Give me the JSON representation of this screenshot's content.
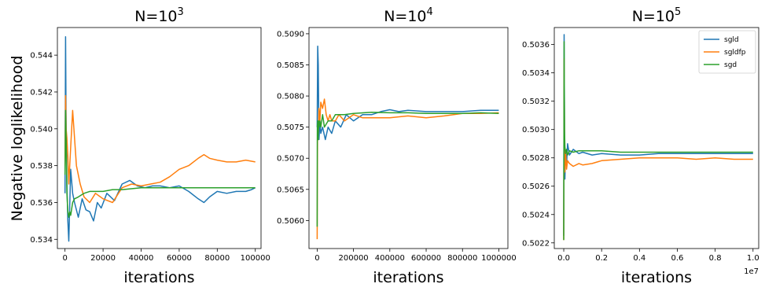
{
  "figure": {
    "ylabel": "Negative loglikelihood",
    "colors": {
      "sgld": "#1f77b4",
      "sgldfp": "#ff7f0e",
      "sgd": "#2ca02c"
    }
  },
  "chart_data": [
    {
      "type": "line",
      "title": "N=10",
      "title_exp": "3",
      "xlabel": "iterations",
      "ylabel": "Negative loglikelihood",
      "xlim": [
        -4000,
        103000
      ],
      "ylim": [
        0.5335,
        0.5455
      ],
      "xticks": [
        0,
        20000,
        40000,
        60000,
        80000,
        100000
      ],
      "xtick_labels": [
        "0",
        "20000",
        "40000",
        "60000",
        "80000",
        "100000"
      ],
      "yticks": [
        0.534,
        0.536,
        0.538,
        0.54,
        0.542,
        0.544
      ],
      "ytick_labels": [
        "0.534",
        "0.536",
        "0.538",
        "0.540",
        "0.542",
        "0.544"
      ],
      "series": [
        {
          "name": "sgld",
          "x": [
            0,
            300,
            600,
            1000,
            1500,
            2000,
            3000,
            4000,
            5000,
            7000,
            9000,
            11000,
            13000,
            15000,
            17000,
            19000,
            22000,
            26000,
            30000,
            34000,
            38000,
            42000,
            46000,
            50000,
            55000,
            60000,
            65000,
            70000,
            73000,
            76000,
            80000,
            85000,
            90000,
            95000,
            98000,
            100000
          ],
          "y": [
            0.5365,
            0.545,
            0.54,
            0.537,
            0.535,
            0.5339,
            0.5378,
            0.5365,
            0.536,
            0.5352,
            0.5362,
            0.5356,
            0.5355,
            0.535,
            0.536,
            0.5357,
            0.5365,
            0.5361,
            0.537,
            0.5372,
            0.5369,
            0.5368,
            0.5369,
            0.5369,
            0.5368,
            0.5369,
            0.5366,
            0.5362,
            0.536,
            0.5363,
            0.5366,
            0.5365,
            0.5366,
            0.5366,
            0.5367,
            0.5368
          ]
        },
        {
          "name": "sgldfp",
          "x": [
            0,
            300,
            600,
            1000,
            1500,
            2000,
            3000,
            4000,
            5000,
            6000,
            7000,
            8000,
            10000,
            13000,
            16000,
            20000,
            25000,
            30000,
            35000,
            40000,
            45000,
            50000,
            55000,
            60000,
            65000,
            70000,
            73000,
            76000,
            80000,
            85000,
            90000,
            95000,
            100000
          ],
          "y": [
            0.538,
            0.5418,
            0.54,
            0.5395,
            0.5385,
            0.537,
            0.539,
            0.541,
            0.5395,
            0.538,
            0.5375,
            0.537,
            0.5363,
            0.536,
            0.5365,
            0.5362,
            0.536,
            0.5368,
            0.537,
            0.5369,
            0.537,
            0.5371,
            0.5374,
            0.5378,
            0.538,
            0.5384,
            0.5386,
            0.5384,
            0.5383,
            0.5382,
            0.5382,
            0.5383,
            0.5382
          ]
        },
        {
          "name": "sgd",
          "x": [
            0,
            300,
            600,
            1000,
            1500,
            2000,
            2500,
            3000,
            4000,
            5000,
            7000,
            10000,
            13000,
            16000,
            20000,
            25000,
            30000,
            40000,
            50000,
            60000,
            70000,
            80000,
            90000,
            100000
          ],
          "y": [
            0.5375,
            0.541,
            0.5395,
            0.5365,
            0.5355,
            0.5352,
            0.5355,
            0.5353,
            0.536,
            0.5362,
            0.5363,
            0.5365,
            0.5366,
            0.5366,
            0.5366,
            0.5367,
            0.5367,
            0.5368,
            0.5368,
            0.5368,
            0.5368,
            0.5368,
            0.5368,
            0.5368
          ]
        }
      ]
    },
    {
      "type": "line",
      "title": "N=10",
      "title_exp": "4",
      "xlabel": "iterations",
      "ylabel": "",
      "xlim": [
        -45000,
        1050000
      ],
      "ylim": [
        0.50555,
        0.5091
      ],
      "xticks": [
        0,
        200000,
        400000,
        600000,
        800000,
        1000000
      ],
      "xtick_labels": [
        "0",
        "200000",
        "400000",
        "600000",
        "800000",
        "1000000"
      ],
      "yticks": [
        0.506,
        0.5065,
        0.507,
        0.5075,
        0.508,
        0.5085,
        0.509
      ],
      "ytick_labels": [
        "0.5060",
        "0.5065",
        "0.5070",
        "0.5075",
        "0.5080",
        "0.5085",
        "0.5090"
      ],
      "series": [
        {
          "name": "sgld",
          "x": [
            0,
            3000,
            6000,
            10000,
            15000,
            20000,
            30000,
            45000,
            60000,
            80000,
            100000,
            130000,
            160000,
            200000,
            250000,
            300000,
            350000,
            400000,
            450000,
            500000,
            600000,
            700000,
            800000,
            900000,
            1000000
          ],
          "y": [
            0.5075,
            0.5088,
            0.5085,
            0.5073,
            0.5076,
            0.5074,
            0.5075,
            0.5073,
            0.5075,
            0.5074,
            0.5076,
            0.5075,
            0.5077,
            0.5076,
            0.5077,
            0.5077,
            0.50775,
            0.50778,
            0.50775,
            0.50777,
            0.50775,
            0.50775,
            0.50775,
            0.50777,
            0.50777
          ]
        },
        {
          "name": "sgldfp",
          "x": [
            0,
            2000,
            5000,
            10000,
            15000,
            20000,
            30000,
            40000,
            50000,
            60000,
            70000,
            80000,
            100000,
            120000,
            150000,
            200000,
            250000,
            300000,
            400000,
            500000,
            600000,
            700000,
            800000,
            900000,
            1000000
          ],
          "y": [
            0.5057,
            0.5075,
            0.5073,
            0.5078,
            0.5076,
            0.5079,
            0.5078,
            0.50795,
            0.5077,
            0.5076,
            0.5077,
            0.5076,
            0.5076,
            0.5077,
            0.5076,
            0.5077,
            0.50765,
            0.50765,
            0.50765,
            0.50768,
            0.50765,
            0.50768,
            0.50772,
            0.50772,
            0.50773
          ]
        },
        {
          "name": "sgd",
          "x": [
            0,
            1000,
            3000,
            5000,
            8000,
            10000,
            15000,
            20000,
            30000,
            40000,
            60000,
            80000,
            100000,
            150000,
            200000,
            300000,
            400000,
            500000,
            600000,
            700000,
            800000,
            900000,
            1000000
          ],
          "y": [
            0.5059,
            0.5075,
            0.5076,
            0.5073,
            0.5076,
            0.5075,
            0.5076,
            0.5075,
            0.5077,
            0.5075,
            0.5076,
            0.5076,
            0.5077,
            0.5077,
            0.50772,
            0.50774,
            0.50773,
            0.50773,
            0.50772,
            0.50772,
            0.50772,
            0.50773,
            0.50772
          ]
        }
      ]
    },
    {
      "type": "line",
      "title": "N=10",
      "title_exp": "5",
      "xlabel": "iterations",
      "ylabel": "",
      "x_offset_label": "1e7",
      "xlim": [
        -0.05,
        1.03
      ],
      "ylim": [
        0.50216,
        0.50372
      ],
      "xticks": [
        0,
        0.2,
        0.4,
        0.6,
        0.8,
        1.0
      ],
      "xtick_labels": [
        "0.0",
        "0.2",
        "0.4",
        "0.6",
        "0.8",
        "1.0"
      ],
      "yticks": [
        0.5022,
        0.5024,
        0.5026,
        0.5028,
        0.503,
        0.5032,
        0.5034,
        0.5036
      ],
      "ytick_labels": [
        "0.5022",
        "0.5024",
        "0.5026",
        "0.5028",
        "0.5030",
        "0.5032",
        "0.5034",
        "0.5036"
      ],
      "legend": {
        "placement": "top-right",
        "entries": [
          "sgld",
          "sgldfp",
          "sgd"
        ]
      },
      "series": [
        {
          "name": "sgld",
          "x": [
            0,
            0.002,
            0.004,
            0.006,
            0.01,
            0.015,
            0.02,
            0.03,
            0.05,
            0.08,
            0.1,
            0.15,
            0.2,
            0.3,
            0.4,
            0.5,
            0.6,
            0.7,
            0.8,
            0.9,
            1.0
          ],
          "y": [
            0.50225,
            0.50367,
            0.503,
            0.50265,
            0.50285,
            0.50275,
            0.5029,
            0.50282,
            0.50286,
            0.50283,
            0.50284,
            0.50282,
            0.50283,
            0.50282,
            0.50282,
            0.50283,
            0.50283,
            0.50283,
            0.50283,
            0.50283,
            0.50283
          ]
        },
        {
          "name": "sgldfp",
          "x": [
            0,
            0.002,
            0.004,
            0.006,
            0.01,
            0.015,
            0.02,
            0.03,
            0.05,
            0.08,
            0.1,
            0.15,
            0.2,
            0.3,
            0.4,
            0.5,
            0.6,
            0.7,
            0.8,
            0.9,
            1.0
          ],
          "y": [
            0.50222,
            0.5035,
            0.50295,
            0.5027,
            0.50285,
            0.50272,
            0.50278,
            0.50276,
            0.50274,
            0.50276,
            0.50275,
            0.50276,
            0.50278,
            0.50279,
            0.5028,
            0.5028,
            0.5028,
            0.50279,
            0.5028,
            0.50279,
            0.50279
          ]
        },
        {
          "name": "sgd",
          "x": [
            0,
            0.002,
            0.004,
            0.006,
            0.01,
            0.015,
            0.02,
            0.03,
            0.05,
            0.08,
            0.1,
            0.15,
            0.2,
            0.3,
            0.4,
            0.5,
            0.6,
            0.7,
            0.8,
            0.9,
            1.0
          ],
          "y": [
            0.50222,
            0.50362,
            0.503,
            0.50288,
            0.50283,
            0.50286,
            0.50282,
            0.50285,
            0.50284,
            0.50285,
            0.50285,
            0.50285,
            0.50285,
            0.50284,
            0.50284,
            0.50284,
            0.50284,
            0.50284,
            0.50284,
            0.50284,
            0.50284
          ]
        }
      ]
    }
  ]
}
